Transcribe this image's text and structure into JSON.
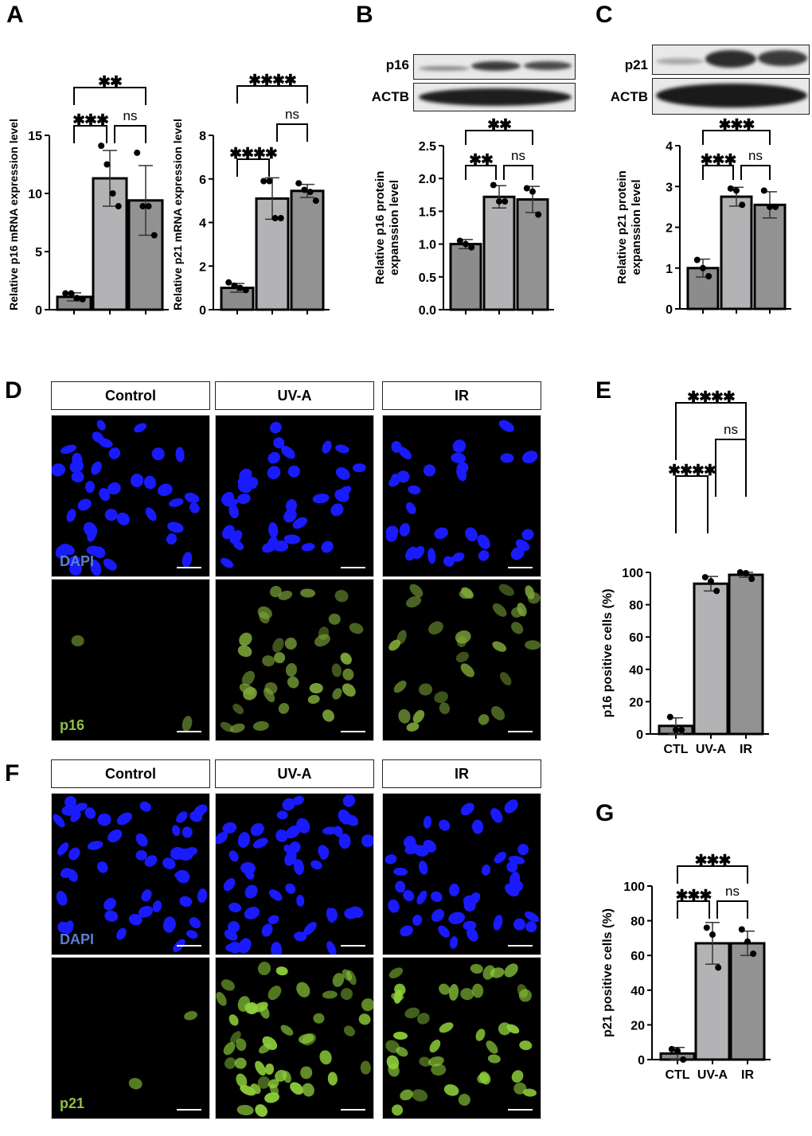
{
  "figure": {
    "panels": [
      "A",
      "B",
      "C",
      "D",
      "E",
      "F",
      "G"
    ],
    "group_labels": [
      "CTL",
      "UV-A",
      "IR"
    ],
    "colors": {
      "bar_ctl": "#8c8c8c",
      "bar_uva": "#b3b3b5",
      "bar_ir": "#929292",
      "dapi_blue": "#1a1aff",
      "p16_green": "#7fa83a",
      "p21_green": "#8fcf3a",
      "dapi_label": "#5a7fd0",
      "p16_label": "#8fbf4a"
    }
  },
  "panel_a": {
    "letter": "A",
    "left": {
      "ylabel": "Relative p16 mRNA expression level",
      "yticks": [
        "0",
        "5",
        "10",
        "15"
      ]
    },
    "right": {
      "ylabel": "Relative p21 mRNA expression level",
      "yticks": [
        "0",
        "2",
        "4",
        "6",
        "8"
      ]
    }
  },
  "panel_b": {
    "letter": "B",
    "blot_labels": [
      "p16",
      "ACTB"
    ],
    "ylabel_line1": "Relative p16 protein",
    "ylabel_line2": "expanssion level",
    "yticks": [
      "0.0",
      "0.5",
      "1.0",
      "1.5",
      "2.0",
      "2.5"
    ]
  },
  "panel_c": {
    "letter": "C",
    "blot_labels": [
      "p21",
      "ACTB"
    ],
    "ylabel_line1": "Relative p21 protein",
    "ylabel_line2": "expanssion level",
    "yticks": [
      "0",
      "1",
      "2",
      "3",
      "4"
    ]
  },
  "panel_d": {
    "letter": "D",
    "headers": [
      "Control",
      "UV-A",
      "IR"
    ],
    "row_labels": [
      "DAPI",
      "p16"
    ]
  },
  "panel_e": {
    "letter": "E",
    "ylabel": "p16 positive cells (%)",
    "yticks": [
      "0",
      "20",
      "40",
      "60",
      "80",
      "100"
    ]
  },
  "panel_f": {
    "letter": "F",
    "headers": [
      "Control",
      "UV-A",
      "IR"
    ],
    "row_labels": [
      "DAPI",
      "p21"
    ]
  },
  "panel_g": {
    "letter": "G",
    "ylabel": "p21 positive cells (%)",
    "yticks": [
      "0",
      "20",
      "40",
      "60",
      "80",
      "100"
    ]
  },
  "chart_data": [
    {
      "id": "A-left",
      "type": "bar",
      "title": "",
      "categories": [
        "CTL",
        "UV-A",
        "IR"
      ],
      "values": [
        1.1,
        11.3,
        9.4
      ],
      "error_sd": [
        0.35,
        2.4,
        3.0
      ],
      "points": [
        [
          1.4,
          1.4,
          1.0,
          0.9
        ],
        [
          14.1,
          12.5,
          10.0,
          8.9
        ],
        [
          13.5,
          8.9,
          8.9,
          6.4
        ]
      ],
      "xlabel": "",
      "ylabel": "Relative p16 mRNA expression level",
      "ylim": [
        0,
        15
      ],
      "yticks": [
        0,
        5,
        10,
        15
      ],
      "grid": false,
      "significance": [
        {
          "pair": [
            "CTL",
            "UV-A"
          ],
          "label": "***"
        },
        {
          "pair": [
            "UV-A",
            "IR"
          ],
          "label": "ns"
        },
        {
          "pair": [
            "CTL",
            "IR"
          ],
          "label": "**"
        }
      ]
    },
    {
      "id": "A-right",
      "type": "bar",
      "categories": [
        "CTL",
        "UV-A",
        "IR"
      ],
      "values": [
        1.0,
        5.1,
        5.45
      ],
      "error_sd": [
        0.2,
        0.95,
        0.3
      ],
      "points": [
        [
          1.25,
          1.1,
          1.0,
          0.9
        ],
        [
          5.9,
          5.9,
          4.2,
          4.2
        ],
        [
          5.8,
          5.5,
          5.4,
          5.0
        ]
      ],
      "xlabel": "",
      "ylabel": "Relative p21 mRNA expression level",
      "ylim": [
        0,
        8
      ],
      "yticks": [
        0,
        2,
        4,
        6,
        8
      ],
      "grid": false,
      "significance": [
        {
          "pair": [
            "CTL",
            "UV-A"
          ],
          "label": "****"
        },
        {
          "pair": [
            "UV-A",
            "IR"
          ],
          "label": "ns"
        },
        {
          "pair": [
            "CTL",
            "IR"
          ],
          "label": "****"
        }
      ]
    },
    {
      "id": "B",
      "type": "bar",
      "categories": [
        "CTL",
        "UV-A",
        "IR"
      ],
      "values": [
        1.0,
        1.72,
        1.68
      ],
      "error_sd": [
        0.07,
        0.17,
        0.2
      ],
      "points": [
        [
          1.05,
          1.0,
          0.95
        ],
        [
          1.9,
          1.65,
          1.65
        ],
        [
          1.85,
          1.8,
          1.45
        ]
      ],
      "xlabel": "",
      "ylabel": "Relative p16 protein expanssion level",
      "ylim": [
        0,
        2.5
      ],
      "yticks": [
        0,
        0.5,
        1.0,
        1.5,
        2.0,
        2.5
      ],
      "grid": false,
      "significance": [
        {
          "pair": [
            "CTL",
            "UV-A"
          ],
          "label": "**"
        },
        {
          "pair": [
            "UV-A",
            "IR"
          ],
          "label": "ns"
        },
        {
          "pair": [
            "CTL",
            "IR"
          ],
          "label": "**"
        }
      ]
    },
    {
      "id": "C",
      "type": "bar",
      "categories": [
        "CTL",
        "UV-A",
        "IR"
      ],
      "values": [
        1.0,
        2.75,
        2.55
      ],
      "error_sd": [
        0.22,
        0.23,
        0.32
      ],
      "points": [
        [
          1.2,
          1.0,
          0.8
        ],
        [
          2.95,
          2.9,
          2.55
        ],
        [
          2.9,
          2.5,
          2.5
        ]
      ],
      "xlabel": "",
      "ylabel": "Relative p21 protein expanssion level",
      "ylim": [
        0,
        4
      ],
      "yticks": [
        0,
        1,
        2,
        3,
        4
      ],
      "grid": false,
      "significance": [
        {
          "pair": [
            "CTL",
            "UV-A"
          ],
          "label": "***"
        },
        {
          "pair": [
            "UV-A",
            "IR"
          ],
          "label": "ns"
        },
        {
          "pair": [
            "CTL",
            "IR"
          ],
          "label": "***"
        }
      ]
    },
    {
      "id": "E",
      "type": "bar",
      "categories": [
        "CTL",
        "UV-A",
        "IR"
      ],
      "values": [
        5,
        93,
        98.5
      ],
      "error_sd": [
        5,
        4.5,
        1.5
      ],
      "points": [
        [
          10.5,
          2.5,
          2.5
        ],
        [
          97,
          94.5,
          88.5
        ],
        [
          100,
          99.5,
          96
        ]
      ],
      "xlabel": "",
      "ylabel": "p16 positive cells (%)",
      "ylim": [
        0,
        100
      ],
      "yticks": [
        0,
        20,
        40,
        60,
        80,
        100
      ],
      "grid": false,
      "significance": [
        {
          "pair": [
            "CTL",
            "UV-A"
          ],
          "label": "****"
        },
        {
          "pair": [
            "UV-A",
            "IR"
          ],
          "label": "ns"
        },
        {
          "pair": [
            "CTL",
            "IR"
          ],
          "label": "****"
        }
      ]
    },
    {
      "id": "G",
      "type": "bar",
      "categories": [
        "CTL",
        "UV-A",
        "IR"
      ],
      "values": [
        3.5,
        67,
        67
      ],
      "error_sd": [
        3.5,
        12,
        7
      ],
      "points": [
        [
          6,
          5,
          0
        ],
        [
          76,
          72,
          53
        ],
        [
          75,
          68,
          61
        ]
      ],
      "xlabel": "",
      "ylabel": "p21 positive cells (%)",
      "ylim": [
        0,
        100
      ],
      "yticks": [
        0,
        20,
        40,
        60,
        80,
        100
      ],
      "grid": false,
      "significance": [
        {
          "pair": [
            "CTL",
            "UV-A"
          ],
          "label": "***"
        },
        {
          "pair": [
            "UV-A",
            "IR"
          ],
          "label": "ns"
        },
        {
          "pair": [
            "CTL",
            "IR"
          ],
          "label": "***"
        }
      ]
    }
  ]
}
